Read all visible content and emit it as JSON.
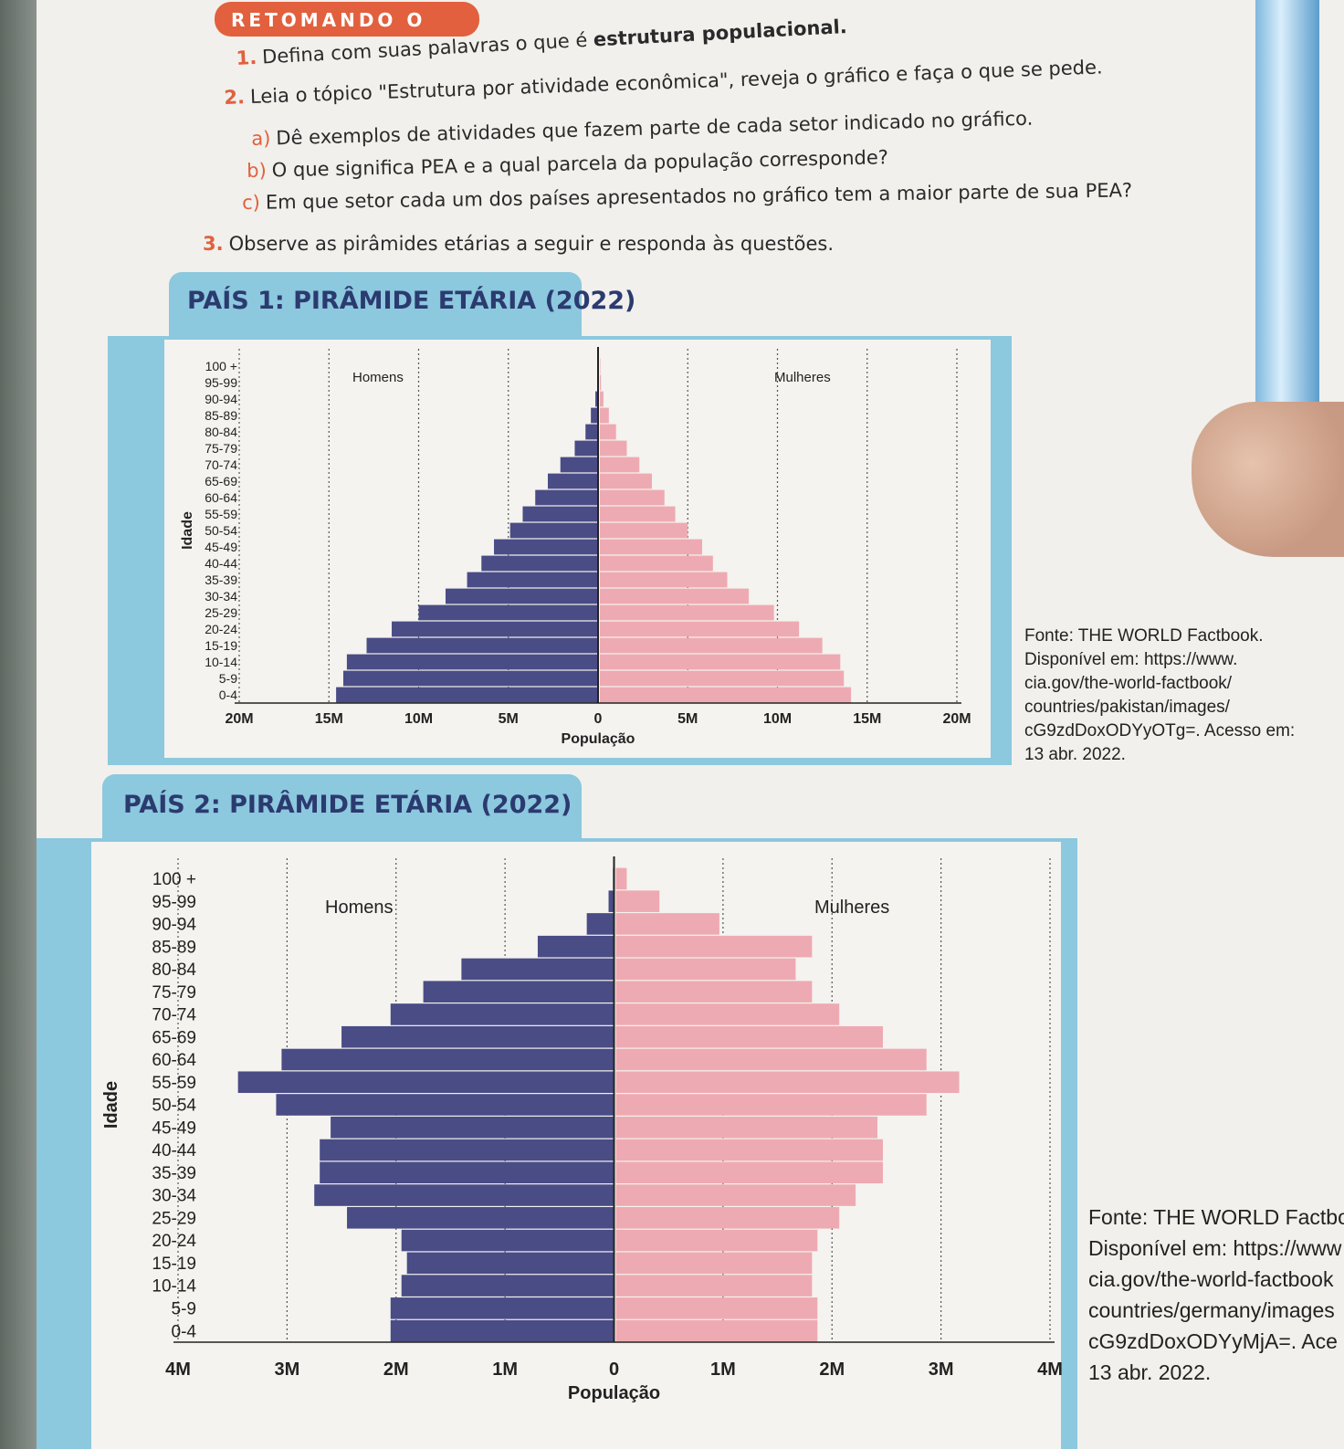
{
  "header": {
    "banner": "RETOMANDO O",
    "q1": {
      "num": "1.",
      "text": "Defina com suas palavras o que é",
      "bold": "estrutura populacional."
    },
    "q2": {
      "num": "2.",
      "text": "Leia o tópico \"Estrutura por atividade econômica\", reveja o gráfico e faça o que se pede."
    },
    "q2a": {
      "label": "a)",
      "text": "Dê exemplos de atividades que fazem parte de cada setor indicado no gráfico."
    },
    "q2b": {
      "label": "b)",
      "text": "O que significa PEA e a qual parcela da população corresponde?"
    },
    "q2c": {
      "label": "c)",
      "text": "Em que setor cada um dos países apresentados no gráfico tem a maior parte de sua PEA?"
    },
    "q3": {
      "num": "3.",
      "text": "Observe as pirâmides etárias a seguir e responda às questões."
    }
  },
  "colors": {
    "men": "#4a4c86",
    "women": "#eeaab2",
    "accent": "#8cc8de",
    "orange": "#e2603d"
  },
  "chart_data": [
    {
      "type": "bar",
      "title": "PAÍS 1: PIRÂMIDE ETÁRIA (2022)",
      "xlabel": "População",
      "ylabel": "Idade",
      "categories": [
        "0-4",
        "5-9",
        "10-14",
        "15-19",
        "20-24",
        "25-29",
        "30-34",
        "35-39",
        "40-44",
        "45-49",
        "50-54",
        "55-59",
        "60-64",
        "65-69",
        "70-74",
        "75-79",
        "80-84",
        "85-89",
        "90-94",
        "95-99",
        "100 +"
      ],
      "series": [
        {
          "name": "Homens",
          "values": [
            14.6,
            14.2,
            14.0,
            12.9,
            11.5,
            10.0,
            8.5,
            7.3,
            6.5,
            5.8,
            4.9,
            4.2,
            3.5,
            2.8,
            2.1,
            1.3,
            0.7,
            0.4,
            0.15,
            0.05,
            0.02
          ]
        },
        {
          "name": "Mulheres",
          "values": [
            14.0,
            13.6,
            13.4,
            12.4,
            11.1,
            9.7,
            8.3,
            7.1,
            6.3,
            5.7,
            4.9,
            4.2,
            3.6,
            2.9,
            2.2,
            1.5,
            0.9,
            0.5,
            0.2,
            0.06,
            0.02
          ]
        }
      ],
      "xticks": [
        "20M",
        "15M",
        "10M",
        "5M",
        "0",
        "5M",
        "10M",
        "15M",
        "20M"
      ],
      "xlim": [
        -20,
        20
      ],
      "source": "Fonte: THE WORLD Factbook.\nDisponível em: https://www.\ncia.gov/the-world-factbook/\ncountries/pakistan/images/\ncG9zdDoxODYyOTg=. Acesso em:\n13 abr. 2022."
    },
    {
      "type": "bar",
      "title": "PAÍS 2: PIRÂMIDE ETÁRIA (2022)",
      "xlabel": "População",
      "ylabel": "Idade",
      "categories": [
        "0-4",
        "5-9",
        "10-14",
        "15-19",
        "20-24",
        "25-29",
        "30-34",
        "35-39",
        "40-44",
        "45-49",
        "50-54",
        "55-59",
        "60-64",
        "65-69",
        "70-74",
        "75-79",
        "80-84",
        "85-89",
        "90-94",
        "95-99",
        "100 +"
      ],
      "series": [
        {
          "name": "Homens",
          "values": [
            2.05,
            2.05,
            1.95,
            1.9,
            1.95,
            2.45,
            2.75,
            2.7,
            2.7,
            2.6,
            3.1,
            3.45,
            3.05,
            2.5,
            2.05,
            1.75,
            1.4,
            0.7,
            0.25,
            0.05,
            0.01
          ]
        },
        {
          "name": "Mulheres",
          "values": [
            1.85,
            1.85,
            1.8,
            1.8,
            1.85,
            2.05,
            2.2,
            2.45,
            2.45,
            2.4,
            2.85,
            3.15,
            2.85,
            2.45,
            2.05,
            1.8,
            1.65,
            1.8,
            0.95,
            0.4,
            0.1
          ]
        }
      ],
      "xticks": [
        "4M",
        "3M",
        "2M",
        "1M",
        "0",
        "1M",
        "2M",
        "3M",
        "4M"
      ],
      "xlim": [
        -4,
        4
      ],
      "source": "Fonte: THE WORLD Factboo\nDisponível em: https://www\ncia.gov/the-world-factbook\ncountries/germany/images\ncG9zdDoxODYyMjA=. Ace\n13 abr. 2022."
    }
  ]
}
